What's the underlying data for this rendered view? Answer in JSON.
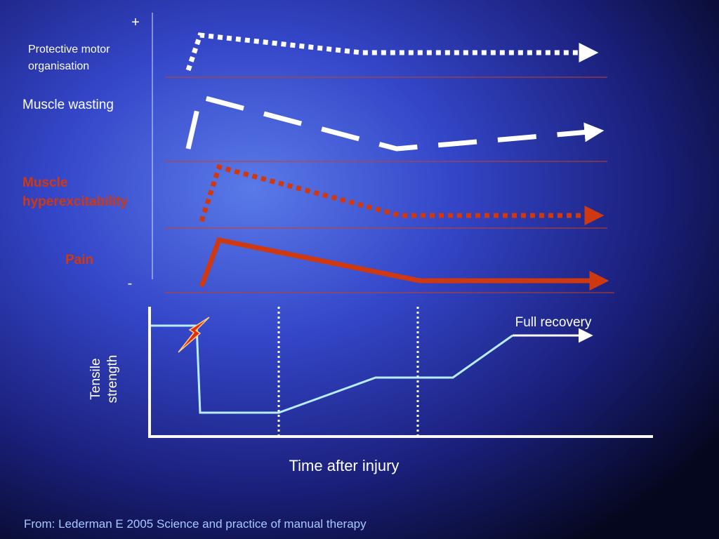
{
  "diagram": {
    "axis_plus": "+",
    "axis_minus": "-",
    "rows": [
      {
        "label_lines": [
          "Protective motor",
          "organisation"
        ]
      },
      {
        "label_lines": [
          "Muscle wasting"
        ]
      },
      {
        "label_lines": [
          "Muscle",
          "hyperexcitability"
        ]
      },
      {
        "label_lines": [
          "Pain"
        ]
      }
    ],
    "lower_chart": {
      "y_label_lines": [
        "Tensile",
        "strength"
      ],
      "x_label": "Time after injury",
      "annotation": "Full recovery"
    },
    "source": "From: Lederman E 2005 Science and practice of manual therapy"
  }
}
